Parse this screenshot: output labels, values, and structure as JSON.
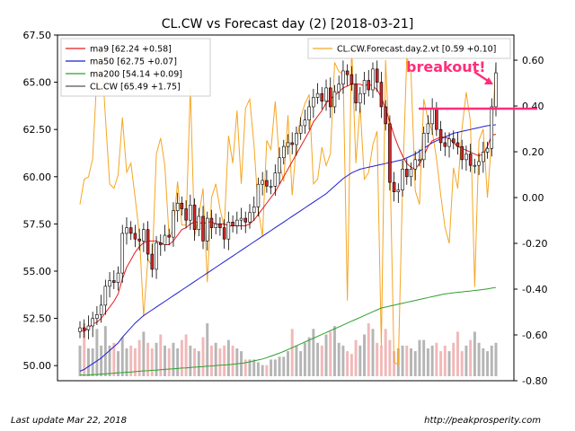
{
  "chart_data": {
    "type": "candlestick",
    "title": "CL.CW vs Forecast day (2)  [2018-03-21]",
    "y_left_range": [
      49.2,
      67.5
    ],
    "y_left_ticks": [
      "50.00",
      "52.50",
      "55.00",
      "57.50",
      "60.00",
      "62.50",
      "65.00",
      "67.50"
    ],
    "y_right_range": [
      -0.8,
      0.71
    ],
    "y_right_ticks": [
      "-0.80",
      "-0.60",
      "-0.40",
      "-0.20",
      "0.00",
      "0.20",
      "0.40",
      "0.60"
    ],
    "grid": false,
    "legend_left": [
      {
        "label": "ma9 [62.24 +0.58]",
        "color": "#e31a1c"
      },
      {
        "label": "ma50 [62.75 +0.07]",
        "color": "#1f1fd1"
      },
      {
        "label": "ma200 [54.14 +0.09]",
        "color": "#2ca02c"
      },
      {
        "label": "CL.CW [65.49 +1.75]",
        "color": "#555555"
      }
    ],
    "legend_right": [
      {
        "label": "CL.CW.Forecast.day.2.vt [0.59 +0.10]",
        "color": "#f5a623"
      }
    ],
    "close": [
      52.0,
      51.9,
      52.1,
      52.5,
      52.7,
      53.2,
      54.2,
      54.5,
      54.4,
      54.9,
      57.0,
      57.3,
      57.0,
      56.7,
      56.6,
      57.2,
      55.9,
      55.1,
      56.5,
      56.4,
      56.9,
      56.8,
      58.2,
      58.6,
      58.3,
      57.7,
      58.5,
      57.2,
      57.9,
      56.6,
      57.8,
      57.3,
      57.5,
      57.3,
      56.7,
      57.6,
      57.4,
      57.7,
      57.8,
      57.6,
      58.1,
      58.4,
      59.6,
      59.8,
      59.5,
      59.5,
      60.2,
      61.0,
      61.6,
      61.8,
      61.7,
      62.3,
      62.7,
      63.0,
      63.7,
      64.2,
      64.4,
      64.0,
      64.7,
      63.7,
      64.5,
      64.9,
      65.6,
      65.4,
      64.9,
      63.9,
      64.4,
      65.1,
      64.6,
      65.7,
      65.0,
      63.7,
      62.8,
      59.7,
      59.2,
      59.3,
      60.4,
      60.0,
      60.4,
      60.9,
      60.9,
      62.3,
      62.8,
      63.6,
      62.5,
      61.8,
      61.6,
      62.0,
      61.8,
      61.6,
      60.9,
      61.2,
      60.6,
      60.6,
      60.8,
      61.3,
      61.5,
      63.7,
      65.5
    ],
    "ma9": [
      51.9,
      51.8,
      52.0,
      52.2,
      52.3,
      52.5,
      52.8,
      53.1,
      53.4,
      53.8,
      54.6,
      55.2,
      55.6,
      56.0,
      56.3,
      56.5,
      56.6,
      56.6,
      56.6,
      56.5,
      56.4,
      56.4,
      56.6,
      56.9,
      57.2,
      57.3,
      57.5,
      57.6,
      57.6,
      57.5,
      57.6,
      57.6,
      57.5,
      57.5,
      57.5,
      57.4,
      57.4,
      57.4,
      57.4,
      57.4,
      57.5,
      57.7,
      58.0,
      58.3,
      58.6,
      58.9,
      59.2,
      59.6,
      60.0,
      60.4,
      60.8,
      61.2,
      61.6,
      62.0,
      62.4,
      62.9,
      63.2,
      63.5,
      63.9,
      64.1,
      64.3,
      64.5,
      64.7,
      64.8,
      64.9,
      64.9,
      64.9,
      64.8,
      64.9,
      64.8,
      64.6,
      64.2,
      63.6,
      62.9,
      62.2,
      61.6,
      61.1,
      60.7,
      60.5,
      60.4,
      60.7,
      61.1,
      61.6,
      61.9,
      62.0,
      62.1,
      62.1,
      62.0,
      61.8,
      61.6,
      61.5,
      61.4,
      61.3,
      61.2,
      61.1,
      61.2,
      61.6,
      62.2,
      62.24
    ],
    "ma50": [
      49.7,
      49.8,
      49.95,
      50.1,
      50.25,
      50.4,
      50.6,
      50.8,
      51.0,
      51.2,
      51.5,
      51.75,
      52.0,
      52.25,
      52.45,
      52.65,
      52.8,
      52.95,
      53.1,
      53.25,
      53.4,
      53.55,
      53.7,
      53.85,
      54.0,
      54.15,
      54.3,
      54.45,
      54.6,
      54.75,
      54.9,
      55.05,
      55.2,
      55.35,
      55.5,
      55.65,
      55.8,
      55.95,
      56.1,
      56.25,
      56.4,
      56.55,
      56.7,
      56.85,
      57.0,
      57.15,
      57.3,
      57.45,
      57.6,
      57.75,
      57.9,
      58.05,
      58.2,
      58.35,
      58.5,
      58.65,
      58.8,
      58.95,
      59.1,
      59.3,
      59.5,
      59.7,
      59.9,
      60.05,
      60.2,
      60.3,
      60.4,
      60.45,
      60.5,
      60.55,
      60.6,
      60.65,
      60.7,
      60.75,
      60.8,
      60.85,
      60.9,
      61.0,
      61.1,
      61.2,
      61.35,
      61.5,
      61.65,
      61.8,
      61.9,
      62.0,
      62.1,
      62.2,
      62.3,
      62.35,
      62.4,
      62.45,
      62.5,
      62.55,
      62.6,
      62.65,
      62.7,
      62.72,
      62.75
    ],
    "ma200": [
      49.5,
      49.5,
      49.5,
      49.52,
      49.53,
      49.55,
      49.56,
      49.58,
      49.6,
      49.62,
      49.63,
      49.65,
      49.66,
      49.68,
      49.7,
      49.72,
      49.73,
      49.75,
      49.76,
      49.78,
      49.8,
      49.82,
      49.83,
      49.85,
      49.87,
      49.88,
      49.9,
      49.92,
      49.93,
      49.95,
      49.97,
      49.98,
      50.0,
      50.02,
      50.03,
      50.05,
      50.07,
      50.1,
      50.12,
      50.15,
      50.2,
      50.25,
      50.3,
      50.35,
      50.42,
      50.5,
      50.58,
      50.66,
      50.75,
      50.85,
      50.95,
      51.05,
      51.15,
      51.25,
      51.35,
      51.45,
      51.55,
      51.65,
      51.75,
      51.85,
      51.95,
      52.05,
      52.15,
      52.25,
      52.35,
      52.45,
      52.55,
      52.65,
      52.75,
      52.85,
      52.95,
      53.05,
      53.1,
      53.15,
      53.2,
      53.25,
      53.3,
      53.35,
      53.4,
      53.45,
      53.5,
      53.55,
      53.6,
      53.65,
      53.7,
      53.75,
      53.8,
      53.82,
      53.85,
      53.88,
      53.9,
      53.93,
      53.95,
      53.98,
      54.0,
      54.03,
      54.06,
      54.1,
      54.14
    ],
    "forecast": [
      -0.03,
      0.08,
      0.09,
      0.17,
      0.54,
      0.66,
      0.35,
      0.06,
      0.04,
      0.1,
      0.35,
      0.11,
      0.15,
      0.0,
      -0.16,
      -0.52,
      -0.27,
      -0.3,
      0.19,
      0.26,
      0.14,
      -0.17,
      -0.14,
      0.07,
      -0.12,
      -0.12,
      0.48,
      -0.17,
      -0.08,
      0.04,
      -0.37,
      0.0,
      0.06,
      -0.05,
      -0.13,
      0.27,
      0.15,
      0.38,
      0.06,
      0.39,
      0.43,
      0.23,
      -0.05,
      -0.17,
      0.25,
      0.21,
      0.42,
      0.15,
      0.07,
      0.36,
      0.01,
      0.24,
      0.35,
      0.41,
      0.45,
      0.06,
      0.08,
      0.22,
      0.14,
      0.19,
      0.59,
      0.55,
      0.54,
      -0.45,
      0.67,
      0.15,
      0.4,
      0.08,
      0.11,
      0.23,
      0.29,
      -0.65,
      0.6,
      0.18,
      -0.72,
      -0.73,
      0.05,
      0.62,
      0.54,
      0.03,
      -0.03,
      0.43,
      0.34,
      0.29,
      0.17,
      0.01,
      -0.13,
      -0.2,
      0.13,
      0.04,
      0.3,
      0.46,
      0.33,
      -0.39,
      0.25,
      0.3,
      0.0,
      0.26,
      0.59
    ],
    "volume_rel": [
      0.55,
      0.95,
      0.5,
      0.5,
      0.85,
      0.55,
      0.9,
      0.55,
      0.6,
      0.45,
      0.7,
      0.5,
      0.55,
      0.5,
      0.65,
      0.8,
      0.6,
      0.5,
      0.6,
      0.75,
      0.55,
      0.5,
      0.6,
      0.5,
      0.65,
      0.75,
      0.55,
      0.5,
      0.45,
      0.7,
      0.95,
      0.55,
      0.6,
      0.5,
      0.55,
      0.65,
      0.55,
      0.5,
      0.45,
      0.3,
      0.3,
      0.3,
      0.25,
      0.2,
      0.2,
      0.3,
      0.3,
      0.35,
      0.35,
      0.45,
      0.85,
      0.55,
      0.45,
      0.6,
      0.7,
      0.85,
      0.6,
      0.55,
      0.75,
      0.8,
      0.9,
      0.6,
      0.55,
      0.45,
      0.4,
      0.65,
      0.55,
      0.75,
      0.95,
      0.85,
      0.6,
      0.55,
      0.85,
      0.65,
      0.45,
      0.5,
      0.55,
      0.55,
      0.5,
      0.45,
      0.65,
      0.65,
      0.5,
      0.55,
      0.6,
      0.45,
      0.55,
      0.45,
      0.6,
      0.8,
      0.45,
      0.55,
      0.65,
      0.8,
      0.6,
      0.5,
      0.45,
      0.55,
      0.6
    ],
    "annotation": {
      "text": "breakout!",
      "color": "#ff2d7a",
      "at_index": 98,
      "level": 63.6
    }
  },
  "footer": {
    "left": "Last update Mar 22, 2018",
    "right": "http://peakprosperity.com"
  }
}
